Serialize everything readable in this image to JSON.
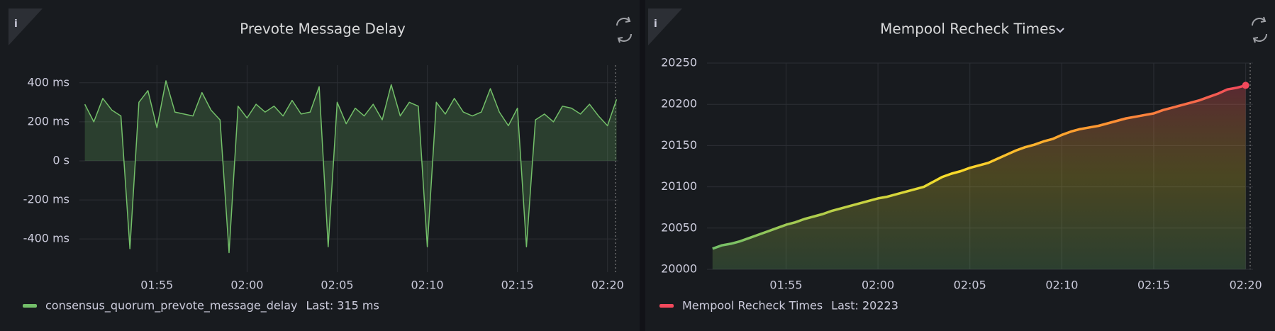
{
  "chart_data": [
    {
      "type": "line",
      "title": "Prevote Message Delay",
      "legend_last": "Last: 315 ms",
      "grid": true,
      "series": [
        {
          "name": "consensus_quorum_prevote_message_delay",
          "color": "#73bf69",
          "values": [
            290,
            200,
            320,
            260,
            230,
            -450,
            300,
            360,
            170,
            410,
            250,
            240,
            230,
            350,
            260,
            210,
            -470,
            280,
            220,
            290,
            250,
            280,
            230,
            310,
            240,
            250,
            380,
            -440,
            300,
            190,
            270,
            230,
            290,
            210,
            390,
            230,
            300,
            280,
            -440,
            300,
            240,
            320,
            250,
            230,
            250,
            370,
            250,
            180,
            270,
            -440,
            210,
            240,
            200,
            280,
            270,
            240,
            290,
            230,
            180,
            315
          ]
        }
      ],
      "x": [
        111,
        111.5,
        112,
        112.5,
        113,
        113.5,
        114,
        114.5,
        115,
        115.5,
        116,
        116.5,
        117,
        117.5,
        118,
        118.5,
        119,
        119.5,
        120,
        120.5,
        121,
        121.5,
        122,
        122.5,
        123,
        123.5,
        124,
        124.5,
        125,
        125.5,
        126,
        126.5,
        127,
        127.5,
        128,
        128.5,
        129,
        129.5,
        130,
        130.5,
        131,
        131.5,
        132,
        132.5,
        133,
        133.5,
        134,
        134.5,
        135,
        135.5,
        136,
        136.5,
        137,
        137.5,
        138,
        138.5,
        139,
        139.5,
        140,
        140.5
      ],
      "xlim": [
        110.7,
        140.6
      ],
      "xticks": [
        {
          "value": 115,
          "label": "01:55"
        },
        {
          "value": 120,
          "label": "02:00"
        },
        {
          "value": 125,
          "label": "02:05"
        },
        {
          "value": 130,
          "label": "02:10"
        },
        {
          "value": 135,
          "label": "02:15"
        },
        {
          "value": 140,
          "label": "02:20"
        }
      ],
      "ylim": [
        -570,
        490
      ],
      "yticks": [
        {
          "value": 400,
          "label": "400 ms"
        },
        {
          "value": 200,
          "label": "200 ms"
        },
        {
          "value": 0,
          "label": "0 s"
        },
        {
          "value": -200,
          "label": "-200 ms"
        },
        {
          "value": -400,
          "label": "-400 ms"
        }
      ]
    },
    {
      "type": "line",
      "title": "Mempool Recheck Times",
      "legend_last": "Last: 20223",
      "grid": true,
      "series": [
        {
          "name": "Mempool Recheck Times",
          "color": "#f2495c",
          "values": [
            20025,
            20029,
            20031,
            20034,
            20038,
            20042,
            20046,
            20050,
            20054,
            20057,
            20061,
            20064,
            20067,
            20071,
            20074,
            20077,
            20080,
            20083,
            20086,
            20088,
            20091,
            20094,
            20097,
            20100,
            20106,
            20112,
            20116,
            20119,
            20123,
            20126,
            20129,
            20134,
            20139,
            20144,
            20148,
            20151,
            20155,
            20158,
            20163,
            20167,
            20170,
            20172,
            20174,
            20177,
            20180,
            20183,
            20185,
            20187,
            20189,
            20193,
            20196,
            20199,
            20202,
            20205,
            20209,
            20213,
            20218,
            20220,
            20223
          ]
        }
      ],
      "x": [
        111,
        111.5,
        112,
        112.5,
        113,
        113.5,
        114,
        114.5,
        115,
        115.5,
        116,
        116.5,
        117,
        117.5,
        118,
        118.5,
        119,
        119.5,
        120,
        120.5,
        121,
        121.5,
        122,
        122.5,
        123,
        123.5,
        124,
        124.5,
        125,
        125.5,
        126,
        126.5,
        127,
        127.5,
        128,
        128.5,
        129,
        129.5,
        130,
        130.5,
        131,
        131.5,
        132,
        132.5,
        133,
        133.5,
        134,
        134.5,
        135,
        135.5,
        136,
        136.5,
        137,
        137.5,
        138,
        138.5,
        139,
        139.5,
        140
      ],
      "xlim": [
        110.7,
        140.4
      ],
      "xticks": [
        {
          "value": 115,
          "label": "01:55"
        },
        {
          "value": 120,
          "label": "02:00"
        },
        {
          "value": 125,
          "label": "02:05"
        },
        {
          "value": 130,
          "label": "02:10"
        },
        {
          "value": 135,
          "label": "02:15"
        },
        {
          "value": 140,
          "label": "02:20"
        }
      ],
      "ylim": [
        20000,
        20250
      ],
      "yticks": [
        20000,
        20050,
        20100,
        20150,
        20200,
        20250
      ]
    }
  ]
}
